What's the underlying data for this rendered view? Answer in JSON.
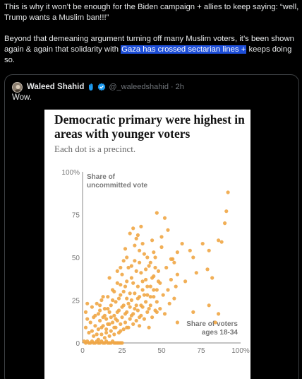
{
  "post": {
    "line1": "This is why it won’t be enough for the Biden campaign + allies to keep saying: “well, Trump wants a Muslim ban!!!”",
    "para2_before": "Beyond that demeaning argument turning off many Muslim voters, it’s been shown again & again that solidarity with ",
    "para2_link": "Gaza has crossed sectarian lines +",
    "para2_after": " keeps doing so."
  },
  "quote": {
    "author_name": "Waleed Shahid",
    "handle": "@_waleedshahid",
    "separator": "·",
    "time": "2h",
    "text": "Wow.",
    "icons": {
      "avatar": "avatar",
      "badge_1": "raised-hand-icon",
      "badge_2": "verified-icon"
    },
    "colors": {
      "verified": "#1d9bf0",
      "hand": "#1d9bf0",
      "highlight": "#1d4ed8"
    }
  },
  "chart_data": {
    "type": "scatter",
    "title": "Democratic primary were highest in areas with younger voters",
    "subtitle": "Each dot is a precinct.",
    "x_axis_annotation": [
      "Share of voters",
      "ages 18-34"
    ],
    "y_axis_annotation": [
      "Share of",
      "uncommitted vote"
    ],
    "x_ticks": [
      "0",
      "25",
      "50",
      "75",
      "100%"
    ],
    "y_ticks": [
      "0",
      "25",
      "50",
      "75",
      "100%"
    ],
    "xlim": [
      0,
      100
    ],
    "ylim": [
      0,
      100
    ],
    "dot_color": "#f0a645",
    "points": [
      [
        1,
        1
      ],
      [
        2,
        0
      ],
      [
        3,
        1
      ],
      [
        4,
        0
      ],
      [
        5,
        0
      ],
      [
        6,
        1
      ],
      [
        7,
        0
      ],
      [
        8,
        0
      ],
      [
        9,
        1
      ],
      [
        10,
        0
      ],
      [
        11,
        0
      ],
      [
        12,
        1
      ],
      [
        13,
        0
      ],
      [
        14,
        0
      ],
      [
        15,
        1
      ],
      [
        16,
        0
      ],
      [
        17,
        0
      ],
      [
        18,
        0
      ],
      [
        19,
        1
      ],
      [
        20,
        0
      ],
      [
        21,
        0
      ],
      [
        22,
        0
      ],
      [
        23,
        0
      ],
      [
        24,
        0
      ],
      [
        25,
        0
      ],
      [
        2,
        9
      ],
      [
        3,
        14
      ],
      [
        2,
        18
      ],
      [
        3,
        23
      ],
      [
        4,
        6
      ],
      [
        5,
        12
      ],
      [
        6,
        21
      ],
      [
        7,
        4
      ],
      [
        8,
        10
      ],
      [
        8,
        16
      ],
      [
        9,
        23
      ],
      [
        10,
        2
      ],
      [
        10,
        8
      ],
      [
        11,
        13
      ],
      [
        11,
        19
      ],
      [
        12,
        5
      ],
      [
        12,
        25
      ],
      [
        13,
        10
      ],
      [
        13,
        15
      ],
      [
        14,
        3
      ],
      [
        14,
        20
      ],
      [
        15,
        8
      ],
      [
        15,
        14
      ],
      [
        16,
        11
      ],
      [
        16,
        27
      ],
      [
        17,
        4
      ],
      [
        17,
        18
      ],
      [
        18,
        7
      ],
      [
        18,
        22
      ],
      [
        19,
        12
      ],
      [
        19,
        31
      ],
      [
        20,
        5
      ],
      [
        20,
        16
      ],
      [
        21,
        9
      ],
      [
        21,
        24
      ],
      [
        22,
        13
      ],
      [
        22,
        35
      ],
      [
        23,
        6
      ],
      [
        23,
        19
      ],
      [
        24,
        11
      ],
      [
        24,
        28
      ],
      [
        25,
        15
      ],
      [
        25,
        40
      ],
      [
        26,
        8
      ],
      [
        26,
        22
      ],
      [
        27,
        12
      ],
      [
        27,
        33
      ],
      [
        28,
        18
      ],
      [
        28,
        26
      ],
      [
        29,
        9
      ],
      [
        29,
        44
      ],
      [
        30,
        14
      ],
      [
        30,
        21
      ],
      [
        31,
        25
      ],
      [
        31,
        38
      ],
      [
        32,
        11
      ],
      [
        32,
        17
      ],
      [
        33,
        29
      ],
      [
        33,
        48
      ],
      [
        34,
        13
      ],
      [
        34,
        22
      ],
      [
        35,
        19
      ],
      [
        35,
        33
      ],
      [
        36,
        10
      ],
      [
        36,
        27
      ],
      [
        37,
        16
      ],
      [
        37,
        41
      ],
      [
        38,
        21
      ],
      [
        38,
        31
      ],
      [
        39,
        14
      ],
      [
        39,
        52
      ],
      [
        40,
        24
      ],
      [
        40,
        37
      ],
      [
        41,
        18
      ],
      [
        41,
        28
      ],
      [
        42,
        9
      ],
      [
        42,
        45
      ],
      [
        43,
        22
      ],
      [
        43,
        33
      ],
      [
        44,
        15
      ],
      [
        44,
        60
      ],
      [
        45,
        27
      ],
      [
        45,
        39
      ],
      [
        46,
        19
      ],
      [
        46,
        50
      ],
      [
        47,
        31
      ],
      [
        47,
        24
      ],
      [
        48,
        42
      ],
      [
        49,
        20
      ],
      [
        49,
        35
      ],
      [
        50,
        56
      ],
      [
        51,
        28
      ],
      [
        52,
        17
      ],
      [
        53,
        44
      ],
      [
        54,
        31
      ],
      [
        55,
        23
      ],
      [
        56,
        37
      ],
      [
        57,
        49
      ],
      [
        58,
        26
      ],
      [
        59,
        33
      ],
      [
        60,
        40
      ],
      [
        6,
        7
      ],
      [
        7,
        15
      ],
      [
        9,
        5
      ],
      [
        10,
        17
      ],
      [
        11,
        22
      ],
      [
        12,
        9
      ],
      [
        13,
        27
      ],
      [
        14,
        16
      ],
      [
        15,
        6
      ],
      [
        16,
        20
      ],
      [
        17,
        11
      ],
      [
        18,
        15
      ],
      [
        19,
        25
      ],
      [
        20,
        9
      ],
      [
        20,
        30
      ],
      [
        21,
        14
      ],
      [
        22,
        18
      ],
      [
        23,
        26
      ],
      [
        24,
        7
      ],
      [
        25,
        21
      ],
      [
        26,
        30
      ],
      [
        27,
        17
      ],
      [
        28,
        9
      ],
      [
        28,
        36
      ],
      [
        29,
        23
      ],
      [
        30,
        29
      ],
      [
        31,
        16
      ],
      [
        32,
        35
      ],
      [
        33,
        20
      ],
      [
        34,
        42
      ],
      [
        35,
        26
      ],
      [
        36,
        15
      ],
      [
        36,
        47
      ],
      [
        37,
        22
      ],
      [
        38,
        36
      ],
      [
        39,
        28
      ],
      [
        40,
        43
      ],
      [
        41,
        33
      ],
      [
        42,
        20
      ],
      [
        43,
        27
      ],
      [
        44,
        38
      ],
      [
        45,
        31
      ],
      [
        46,
        44
      ],
      [
        47,
        18
      ],
      [
        48,
        36
      ],
      [
        17,
        38
      ],
      [
        22,
        42
      ],
      [
        24,
        34
      ],
      [
        26,
        48
      ],
      [
        28,
        50
      ],
      [
        31,
        45
      ],
      [
        33,
        57
      ],
      [
        35,
        63
      ],
      [
        37,
        68
      ],
      [
        24,
        44
      ],
      [
        27,
        55
      ],
      [
        30,
        64
      ],
      [
        32,
        67
      ],
      [
        34,
        61
      ],
      [
        36,
        54
      ],
      [
        38,
        58
      ],
      [
        41,
        50
      ],
      [
        43,
        47
      ],
      [
        45,
        53
      ],
      [
        47,
        76
      ],
      [
        50,
        62
      ],
      [
        52,
        73
      ],
      [
        54,
        66
      ],
      [
        56,
        49
      ],
      [
        58,
        47
      ],
      [
        60,
        53
      ],
      [
        63,
        58
      ],
      [
        65,
        36
      ],
      [
        68,
        54
      ],
      [
        70,
        50
      ],
      [
        72,
        41
      ],
      [
        76,
        58
      ],
      [
        79,
        43
      ],
      [
        80,
        54
      ],
      [
        82,
        38
      ],
      [
        86,
        60
      ],
      [
        88,
        59
      ],
      [
        90,
        70
      ],
      [
        91,
        77
      ],
      [
        92,
        88
      ],
      [
        60,
        12
      ],
      [
        70,
        18
      ],
      [
        80,
        22
      ],
      [
        86,
        17
      ],
      [
        84,
        12
      ]
    ]
  }
}
